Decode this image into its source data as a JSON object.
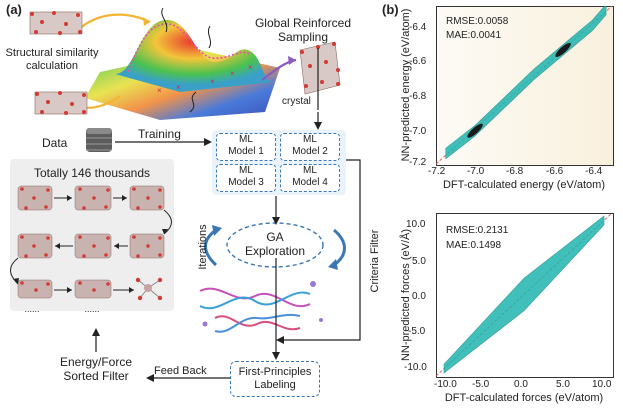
{
  "panel_a": {
    "label": "(a)",
    "similarity_label_1": "Structural similarity",
    "similarity_label_2": "calculation",
    "sampling_label_1": "Global Reinforced",
    "sampling_label_2": "Sampling",
    "crystal_label": "crystal",
    "data_label": "Data",
    "training_label": "Training",
    "models": [
      {
        "line1": "ML",
        "line2": "Model 1"
      },
      {
        "line1": "ML",
        "line2": "Model 2"
      },
      {
        "line1": "ML",
        "line2": "Model 3"
      },
      {
        "line1": "ML",
        "line2": "Model 4"
      }
    ],
    "totally_label": "Totally 146 thousands",
    "dots": "......",
    "iterations_label": "Iterations",
    "ga_line1": "GA",
    "ga_line2": "Exploration",
    "criteria_label": "Criteria Filter",
    "feedback_label": "Feed Back",
    "sorted_line1": "Energy/Force",
    "sorted_line2": "Sorted Filter",
    "fp_line1": "First-Principles",
    "fp_line2": "Labeling"
  },
  "panel_b": {
    "label": "(b)"
  },
  "chart_data": [
    {
      "type": "scatter",
      "title": "",
      "xlabel": "DFT-calculated energy (eV/atom)",
      "ylabel": "NN-predicted energy (eV/atom)",
      "xlim": [
        -7.2,
        -6.3
      ],
      "ylim": [
        -7.2,
        -6.3
      ],
      "xticks": [
        "-7.2",
        "-7.0",
        "-6.8",
        "-6.6",
        "-6.4"
      ],
      "yticks": [
        "-6.4",
        "-6.6",
        "-6.8",
        "-7.0",
        "-7.2"
      ],
      "annotations": [
        "RMSE:0.0058",
        "MAE:0.0041"
      ],
      "series": [
        {
          "name": "parity",
          "x": [
            -7.2,
            -6.3
          ],
          "y": [
            -7.2,
            -6.3
          ]
        },
        {
          "name": "samples",
          "x": [
            -7.15,
            -7.0,
            -6.85,
            -6.7,
            -6.55,
            -6.4,
            -6.33
          ],
          "y": [
            -7.14,
            -7.01,
            -6.85,
            -6.69,
            -6.55,
            -6.41,
            -6.32
          ]
        }
      ]
    },
    {
      "type": "scatter",
      "title": "",
      "xlabel": "DFT-calculated forces (eV/atom)",
      "ylabel": "NN-predicted forces (eV/Å)",
      "xlim": [
        -11,
        11
      ],
      "ylim": [
        -11,
        11
      ],
      "xticks": [
        "-10.0",
        "-5.0",
        "0.0",
        "5.0",
        "10.0"
      ],
      "yticks": [
        "10.0",
        "5.0",
        "0.0",
        "-5.0",
        "-10.0"
      ],
      "annotations": [
        "RMSE:0.2131",
        "MAE:0.1498"
      ],
      "series": [
        {
          "name": "parity",
          "x": [
            -11,
            11
          ],
          "y": [
            -11,
            11
          ]
        },
        {
          "name": "samples",
          "x": [
            -10,
            -5,
            0,
            5,
            10
          ],
          "y": [
            -10,
            -5,
            0,
            5,
            10
          ]
        }
      ]
    }
  ],
  "colors": {
    "box_border": "#3a78b5",
    "arrow": "#222222",
    "scatter": "#1fb5b0",
    "scatter_dark": "#1a1a1a",
    "parity": "#e05050",
    "panel_bg": "#fbf6ea"
  }
}
